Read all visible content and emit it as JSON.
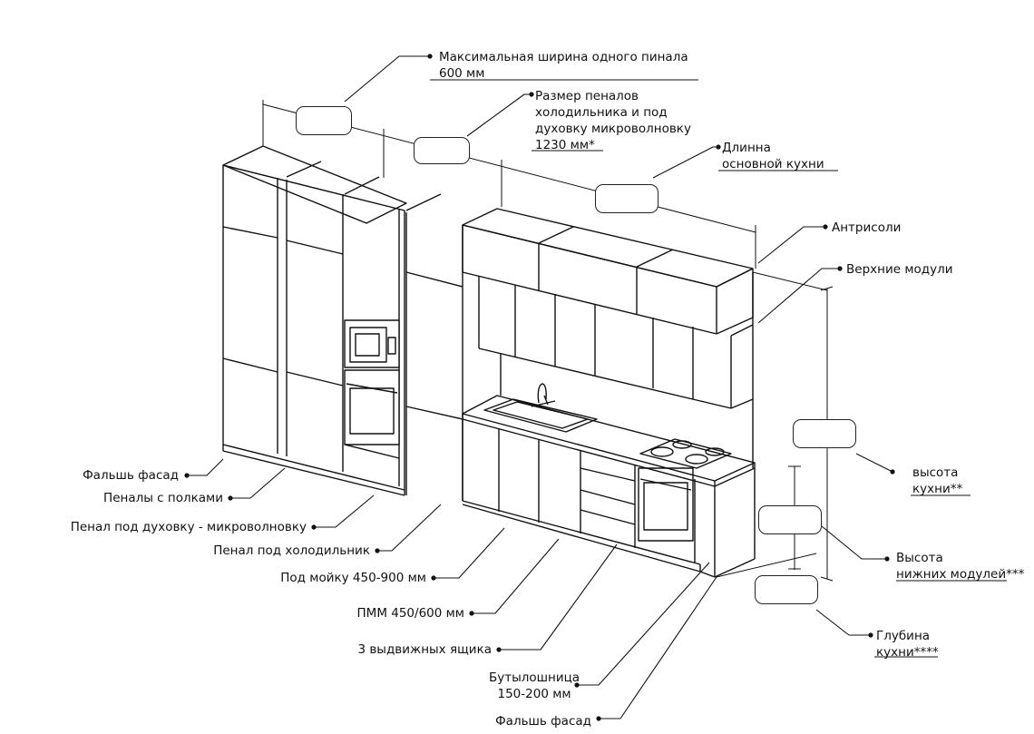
{
  "top_annotations": {
    "max_width": {
      "line1": "Максимальная ширина одного пинала",
      "line2": "600 мм"
    },
    "fridge_oven": {
      "line1": "Размер пеналов",
      "line2": "холодильника и под",
      "line3": "духовку микроволновку",
      "line4": "1230 мм*"
    },
    "main_length": {
      "line1": "Длинна",
      "line2": "основной кухни"
    }
  },
  "right_annotations": {
    "antresoli": "Антрисоли",
    "upper_modules": "Верхние модули",
    "kitchen_height": {
      "line1": "высота",
      "line2": "кухни**"
    },
    "lower_height": {
      "line1": "Высота",
      "line2": "нижних модулей***"
    },
    "depth": {
      "line1": "Глубина",
      "line2": "кухни****"
    }
  },
  "left_annotations": {
    "fake_facade_left": "Фальшь фасад",
    "shelf_cabinets": "Пеналы с полками",
    "oven_microwave_cabinet": "Пенал под духовку - микроволновку",
    "fridge_cabinet": "Пенал под холодильник"
  },
  "bottom_annotations": {
    "sink": "Под мойку 450-900 мм",
    "dishwasher": "ПММ 450/600 мм",
    "drawers": "3 выдвижных ящика",
    "bottle_rack": {
      "line1": "Бутылошница",
      "line2": "150-200 мм"
    },
    "fake_facade_bottom": "Фальшь фасад"
  }
}
